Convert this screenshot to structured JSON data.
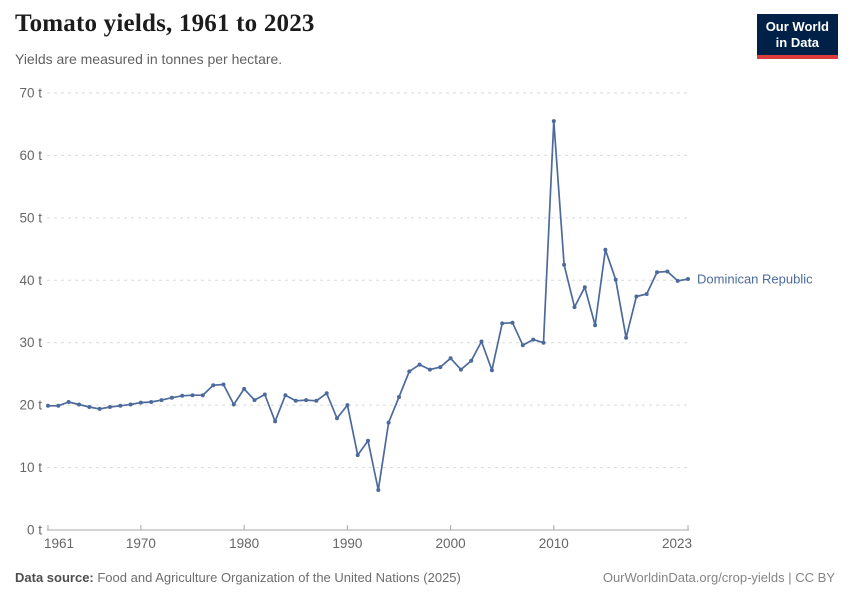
{
  "header": {
    "title": "Tomato yields, 1961 to 2023",
    "subtitle": "Yields are measured in tonnes per hectare.",
    "logo": {
      "line1": "Our World",
      "line2": "in Data"
    }
  },
  "chart_data": {
    "type": "line",
    "title": "Tomato yields, 1961 to 2023",
    "ylabel": "tonnes per hectare",
    "xlabel": "",
    "grid": "dashed-horizontal",
    "legend_position": "end-of-line-label",
    "xlim": [
      1961,
      2023
    ],
    "ylim": [
      0,
      70
    ],
    "yticks": [
      0,
      10,
      20,
      30,
      40,
      50,
      60,
      70
    ],
    "ytick_suffix": " t",
    "xticks": [
      1961,
      1970,
      1980,
      1990,
      2000,
      2010,
      2023
    ],
    "series": [
      {
        "name": "Dominican Republic",
        "color": "#4c6a9c",
        "x": [
          1961,
          1962,
          1963,
          1964,
          1965,
          1966,
          1967,
          1968,
          1969,
          1970,
          1971,
          1972,
          1973,
          1974,
          1975,
          1976,
          1977,
          1978,
          1979,
          1980,
          1981,
          1982,
          1983,
          1984,
          1985,
          1986,
          1987,
          1988,
          1989,
          1990,
          1991,
          1992,
          1993,
          1994,
          1995,
          1996,
          1997,
          1998,
          1999,
          2000,
          2001,
          2002,
          2003,
          2004,
          2005,
          2006,
          2007,
          2008,
          2009,
          2010,
          2011,
          2012,
          2013,
          2014,
          2015,
          2016,
          2017,
          2018,
          2019,
          2020,
          2021,
          2022,
          2023
        ],
        "values": [
          19.9,
          19.9,
          20.5,
          20.1,
          19.7,
          19.4,
          19.7,
          19.9,
          20.1,
          20.4,
          20.5,
          20.8,
          21.2,
          21.5,
          21.6,
          21.6,
          23.2,
          23.3,
          20.1,
          22.6,
          20.8,
          21.7,
          17.4,
          21.6,
          20.7,
          20.8,
          20.7,
          21.9,
          17.9,
          20.0,
          12.0,
          14.3,
          6.4,
          17.2,
          21.3,
          25.4,
          26.5,
          25.7,
          26.1,
          27.5,
          25.7,
          27.1,
          30.2,
          25.6,
          33.1,
          33.2,
          29.6,
          30.5,
          30.0,
          65.5,
          42.5,
          35.7,
          38.9,
          32.8,
          44.9,
          40.1,
          30.8,
          37.4,
          37.8,
          41.3,
          41.4,
          39.9,
          40.2
        ]
      }
    ]
  },
  "footer": {
    "source_label": "Data source:",
    "source_text": " Food and Agriculture Organization of the United Nations (2025)",
    "link_text": "OurWorldinData.org/crop-yields | CC BY"
  },
  "colors": {
    "accent_line": "#4c6a9c",
    "grid": "#dadada",
    "axis": "#a8a8a8",
    "tick_label": "#666666",
    "logo_bg": "#002147",
    "logo_red": "#dc3c3c"
  }
}
